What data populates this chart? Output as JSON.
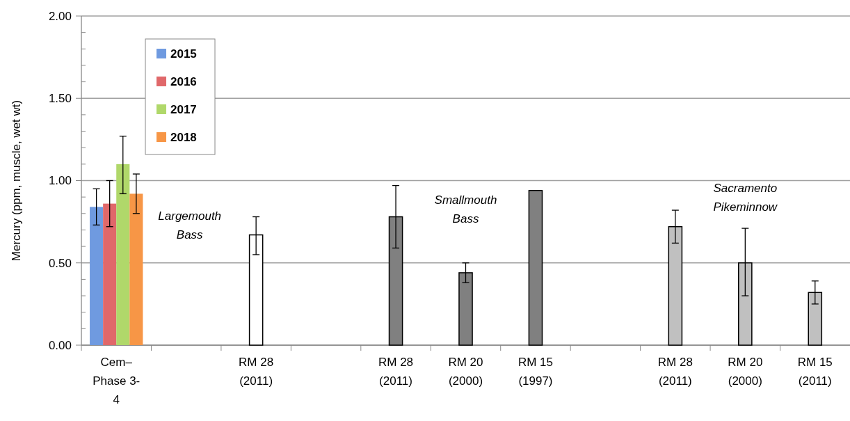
{
  "chart_data": {
    "type": "bar",
    "ylabel": "Mercury (ppm, muscle, wet wt)",
    "categories": [
      "Cem–Phase 3-4",
      null,
      "RM 28 (2011)",
      null,
      "RM 28 (2011)",
      "RM 20 (2000)",
      "RM 15 (1997)",
      null,
      "RM 28 (2011)",
      "RM 20 (2000)",
      "RM 15 (2011)"
    ],
    "series": [
      {
        "name": "2015",
        "color": "#6f9ae0",
        "values": [
          0.84,
          null,
          null,
          null,
          null,
          null,
          null,
          null,
          null,
          null,
          null
        ],
        "errors": [
          [
            0.73,
            0.95
          ],
          null,
          null,
          null,
          null,
          null,
          null,
          null,
          null,
          null,
          null
        ]
      },
      {
        "name": "2016",
        "color": "#e0686a",
        "values": [
          0.86,
          null,
          null,
          null,
          null,
          null,
          null,
          null,
          null,
          null,
          null
        ],
        "errors": [
          [
            0.72,
            1.0
          ],
          null,
          null,
          null,
          null,
          null,
          null,
          null,
          null,
          null,
          null
        ]
      },
      {
        "name": "2017",
        "color": "#b0d86a",
        "values": [
          1.1,
          null,
          null,
          null,
          null,
          null,
          null,
          null,
          null,
          null,
          null
        ],
        "errors": [
          [
            0.92,
            1.27
          ],
          null,
          null,
          null,
          null,
          null,
          null,
          null,
          null,
          null,
          null
        ]
      },
      {
        "name": "2018",
        "color": "#f79646",
        "values": [
          0.92,
          null,
          null,
          null,
          null,
          null,
          null,
          null,
          null,
          null,
          null
        ],
        "errors": [
          [
            0.8,
            1.04
          ],
          null,
          null,
          null,
          null,
          null,
          null,
          null,
          null,
          null,
          null
        ]
      },
      {
        "colors": [
          null,
          null,
          "#ffffff",
          null,
          "#808080",
          "#808080",
          "#808080",
          null,
          "#c0c0c0",
          "#c0c0c0",
          "#c0c0c0"
        ],
        "values": [
          null,
          null,
          0.67,
          null,
          0.78,
          0.44,
          0.94,
          null,
          0.72,
          0.5,
          0.32
        ],
        "errors": [
          null,
          null,
          [
            0.55,
            0.78
          ],
          null,
          [
            0.59,
            0.97
          ],
          [
            0.38,
            0.5
          ],
          null,
          null,
          [
            0.62,
            0.82
          ],
          [
            0.3,
            0.71
          ],
          [
            0.25,
            0.39
          ]
        ]
      }
    ],
    "ylim": [
      0,
      2
    ],
    "yticks": [
      {
        "value": 0,
        "label": "0.00"
      },
      {
        "value": 0.1,
        "label": null
      },
      {
        "value": 0.2,
        "label": null
      },
      {
        "value": 0.3,
        "label": null
      },
      {
        "value": 0.4,
        "label": null
      },
      {
        "value": 0.5,
        "label": "0.50"
      },
      {
        "value": 0.6,
        "label": null
      },
      {
        "value": 0.7,
        "label": null
      },
      {
        "value": 0.8,
        "label": null
      },
      {
        "value": 0.9,
        "label": null
      },
      {
        "value": 1,
        "label": "1.00"
      },
      {
        "value": 1.1,
        "label": null
      },
      {
        "value": 1.2,
        "label": null
      },
      {
        "value": 1.3,
        "label": null
      },
      {
        "value": 1.4,
        "label": null
      },
      {
        "value": 1.5,
        "label": "1.50"
      },
      {
        "value": 1.6,
        "label": null
      },
      {
        "value": 1.7,
        "label": null
      },
      {
        "value": 1.8,
        "label": null
      },
      {
        "value": 1.9,
        "label": null
      },
      {
        "value": 2,
        "label": "2.00"
      }
    ],
    "grid": "y",
    "legend": "top left",
    "annotations": [
      "Largemouth Bass",
      "Smallmouth Bass",
      "Sacramento Pikeminnow"
    ]
  }
}
